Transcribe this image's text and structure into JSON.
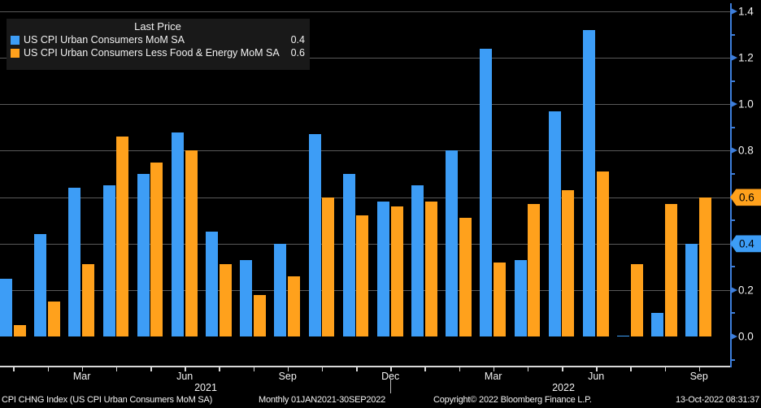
{
  "colors": {
    "background": "#000000",
    "bar_blue": "#3d9df6",
    "bar_orange": "#ffa11c",
    "grid": "#5a5a5a",
    "y_axis": "#3d7edb",
    "x_axis": "#d8d8d8",
    "legend_bg": "#191919",
    "text": "#f2f2f2"
  },
  "legend": {
    "title": "Last Price",
    "series": [
      {
        "label": "US CPI Urban Consumers MoM SA",
        "value": "0.4",
        "swatch": "#3d9df6"
      },
      {
        "label": "US CPI Urban Consumers Less Food & Energy MoM SA",
        "value": "0.6",
        "swatch": "#ffa11c"
      }
    ]
  },
  "chart_data": {
    "type": "bar",
    "categories": [
      "Jan 2021",
      "Feb 2021",
      "Mar 2021",
      "Apr 2021",
      "May 2021",
      "Jun 2021",
      "Jul 2021",
      "Aug 2021",
      "Sep 2021",
      "Oct 2021",
      "Nov 2021",
      "Dec 2021",
      "Jan 2022",
      "Feb 2022",
      "Mar 2022",
      "Apr 2022",
      "May 2022",
      "Jun 2022",
      "Jul 2022",
      "Aug 2022",
      "Sep 2022"
    ],
    "series": [
      {
        "name": "US CPI Urban Consumers MoM SA",
        "color": "#3d9df6",
        "last_price": 0.4,
        "values": [
          0.25,
          0.44,
          0.64,
          0.65,
          0.7,
          0.88,
          0.45,
          0.33,
          0.4,
          0.87,
          0.7,
          0.58,
          0.65,
          0.8,
          1.24,
          0.33,
          0.97,
          1.32,
          0.0,
          0.1,
          0.4
        ]
      },
      {
        "name": "US CPI Urban Consumers Less Food & Energy MoM SA",
        "color": "#ffa11c",
        "last_price": 0.6,
        "values": [
          0.05,
          0.15,
          0.31,
          0.86,
          0.75,
          0.8,
          0.31,
          0.18,
          0.26,
          0.6,
          0.52,
          0.56,
          0.58,
          0.51,
          0.32,
          0.57,
          0.63,
          0.71,
          0.31,
          0.57,
          0.6
        ]
      }
    ],
    "ylim": [
      0.0,
      1.4
    ],
    "y_major_ticks": [
      0.0,
      0.2,
      0.4,
      0.6,
      0.8,
      1.0,
      1.2,
      1.4
    ],
    "y_badge_ticks": [
      {
        "value": 0.4,
        "color": "#3d9df6"
      },
      {
        "value": 0.6,
        "color": "#ffa11c"
      }
    ],
    "x_month_labels": [
      {
        "label": "Mar",
        "month_index": 2
      },
      {
        "label": "Jun",
        "month_index": 5
      },
      {
        "label": "Sep",
        "month_index": 8
      },
      {
        "label": "Dec",
        "month_index": 11
      },
      {
        "label": "Mar",
        "month_index": 14
      },
      {
        "label": "Jun",
        "month_index": 17
      },
      {
        "label": "Sep",
        "month_index": 20
      }
    ],
    "x_year_labels": [
      {
        "label": "2021"
      },
      {
        "label": "2022"
      }
    ],
    "grid": "horizontal",
    "legend_position": "top-left"
  },
  "footer": {
    "left": "CPI CHNG Index (US CPI Urban Consumers MoM SA)",
    "periodicity": "Monthly 01JAN2021-30SEP2022",
    "copyright": "Copyright© 2022 Bloomberg Finance L.P.",
    "timestamp": "13-Oct-2022 08:31:37"
  }
}
